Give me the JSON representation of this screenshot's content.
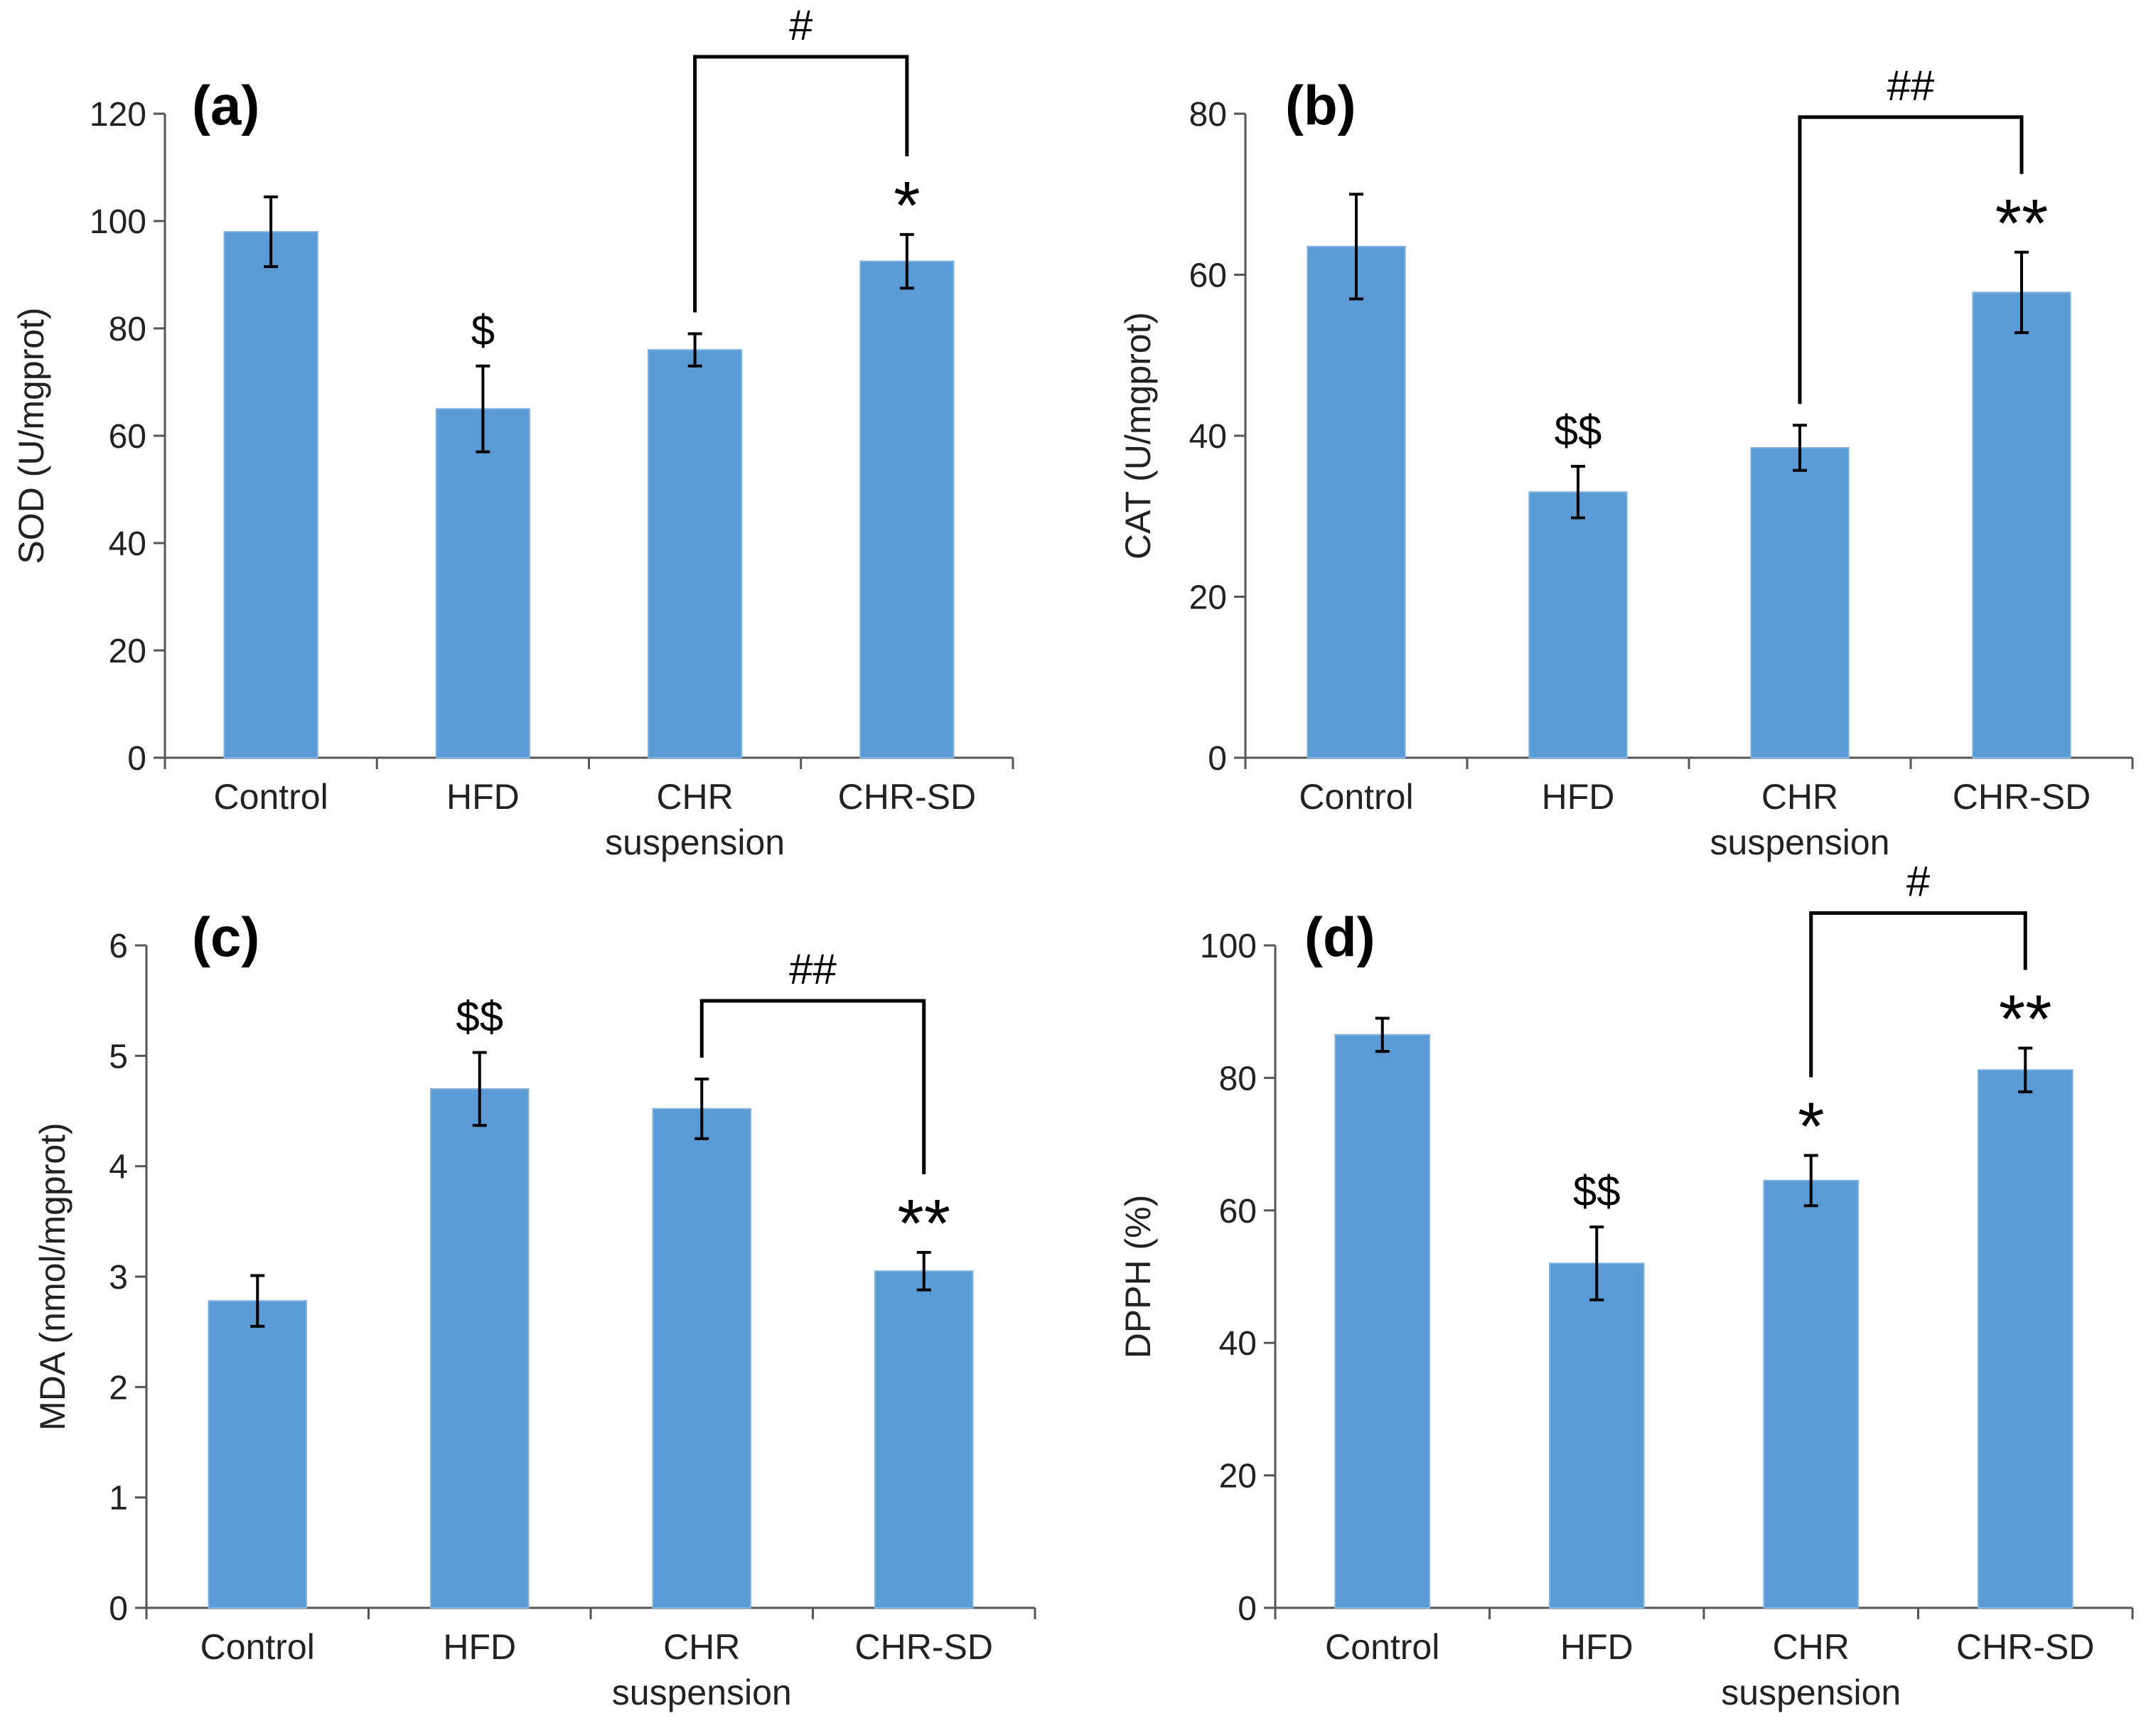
{
  "chart_data": [
    {
      "type": "bar",
      "panel_label": "(a)",
      "ylabel": "SOD (U/mgprot)",
      "ylim": [
        0,
        120
      ],
      "yticks": [
        0,
        20,
        40,
        60,
        80,
        100,
        120
      ],
      "categories": [
        "Control",
        "HFD",
        "CHR\nsuspension",
        "CHR-SD"
      ],
      "values": [
        98,
        65,
        76,
        92.5
      ],
      "errors": [
        6.5,
        8,
        3,
        5
      ],
      "bar_annotations": [
        "",
        "$",
        "",
        "*"
      ],
      "bracket": {
        "from": 2,
        "to": 3,
        "label": "#"
      },
      "color": "#5b9bd5"
    },
    {
      "type": "bar",
      "panel_label": "(b)",
      "ylabel": "CAT (U/mgprot)",
      "ylim": [
        0,
        80
      ],
      "yticks": [
        0,
        20,
        40,
        60,
        80
      ],
      "categories": [
        "Control",
        "HFD",
        "CHR\nsuspension",
        "CHR-SD"
      ],
      "values": [
        63.5,
        33,
        38.5,
        57.8
      ],
      "errors": [
        6.5,
        3.2,
        2.8,
        5
      ],
      "bar_annotations": [
        "",
        "$$",
        "",
        "**"
      ],
      "bracket": {
        "from": 2,
        "to": 3,
        "label": "##"
      },
      "color": "#5b9bd5"
    },
    {
      "type": "bar",
      "panel_label": "(c)",
      "ylabel": "MDA (nmol/mgprot)",
      "ylim": [
        0,
        6
      ],
      "yticks": [
        0,
        1,
        2,
        3,
        4,
        5,
        6
      ],
      "categories": [
        "Control",
        "HFD",
        "CHR\nsuspension",
        "CHR-SD"
      ],
      "values": [
        2.78,
        4.7,
        4.52,
        3.05
      ],
      "errors": [
        0.23,
        0.33,
        0.27,
        0.17
      ],
      "bar_annotations": [
        "",
        "$$",
        "",
        "**"
      ],
      "bracket": {
        "from": 2,
        "to": 3,
        "label": "##"
      },
      "color": "#5b9bd5"
    },
    {
      "type": "bar",
      "panel_label": "(d)",
      "ylabel": "DPPH (%)",
      "ylim": [
        0,
        100
      ],
      "yticks": [
        0,
        20,
        40,
        60,
        80,
        100
      ],
      "categories": [
        "Control",
        "HFD",
        "CHR\nsuspension",
        "CHR-SD"
      ],
      "values": [
        86.5,
        52,
        64.5,
        81.2
      ],
      "errors": [
        2.5,
        5.5,
        3.8,
        3.3
      ],
      "bar_annotations": [
        "",
        "$$",
        "*",
        "**"
      ],
      "bracket": {
        "from": 2,
        "to": 3,
        "label": "#"
      },
      "color": "#5b9bd5"
    }
  ]
}
